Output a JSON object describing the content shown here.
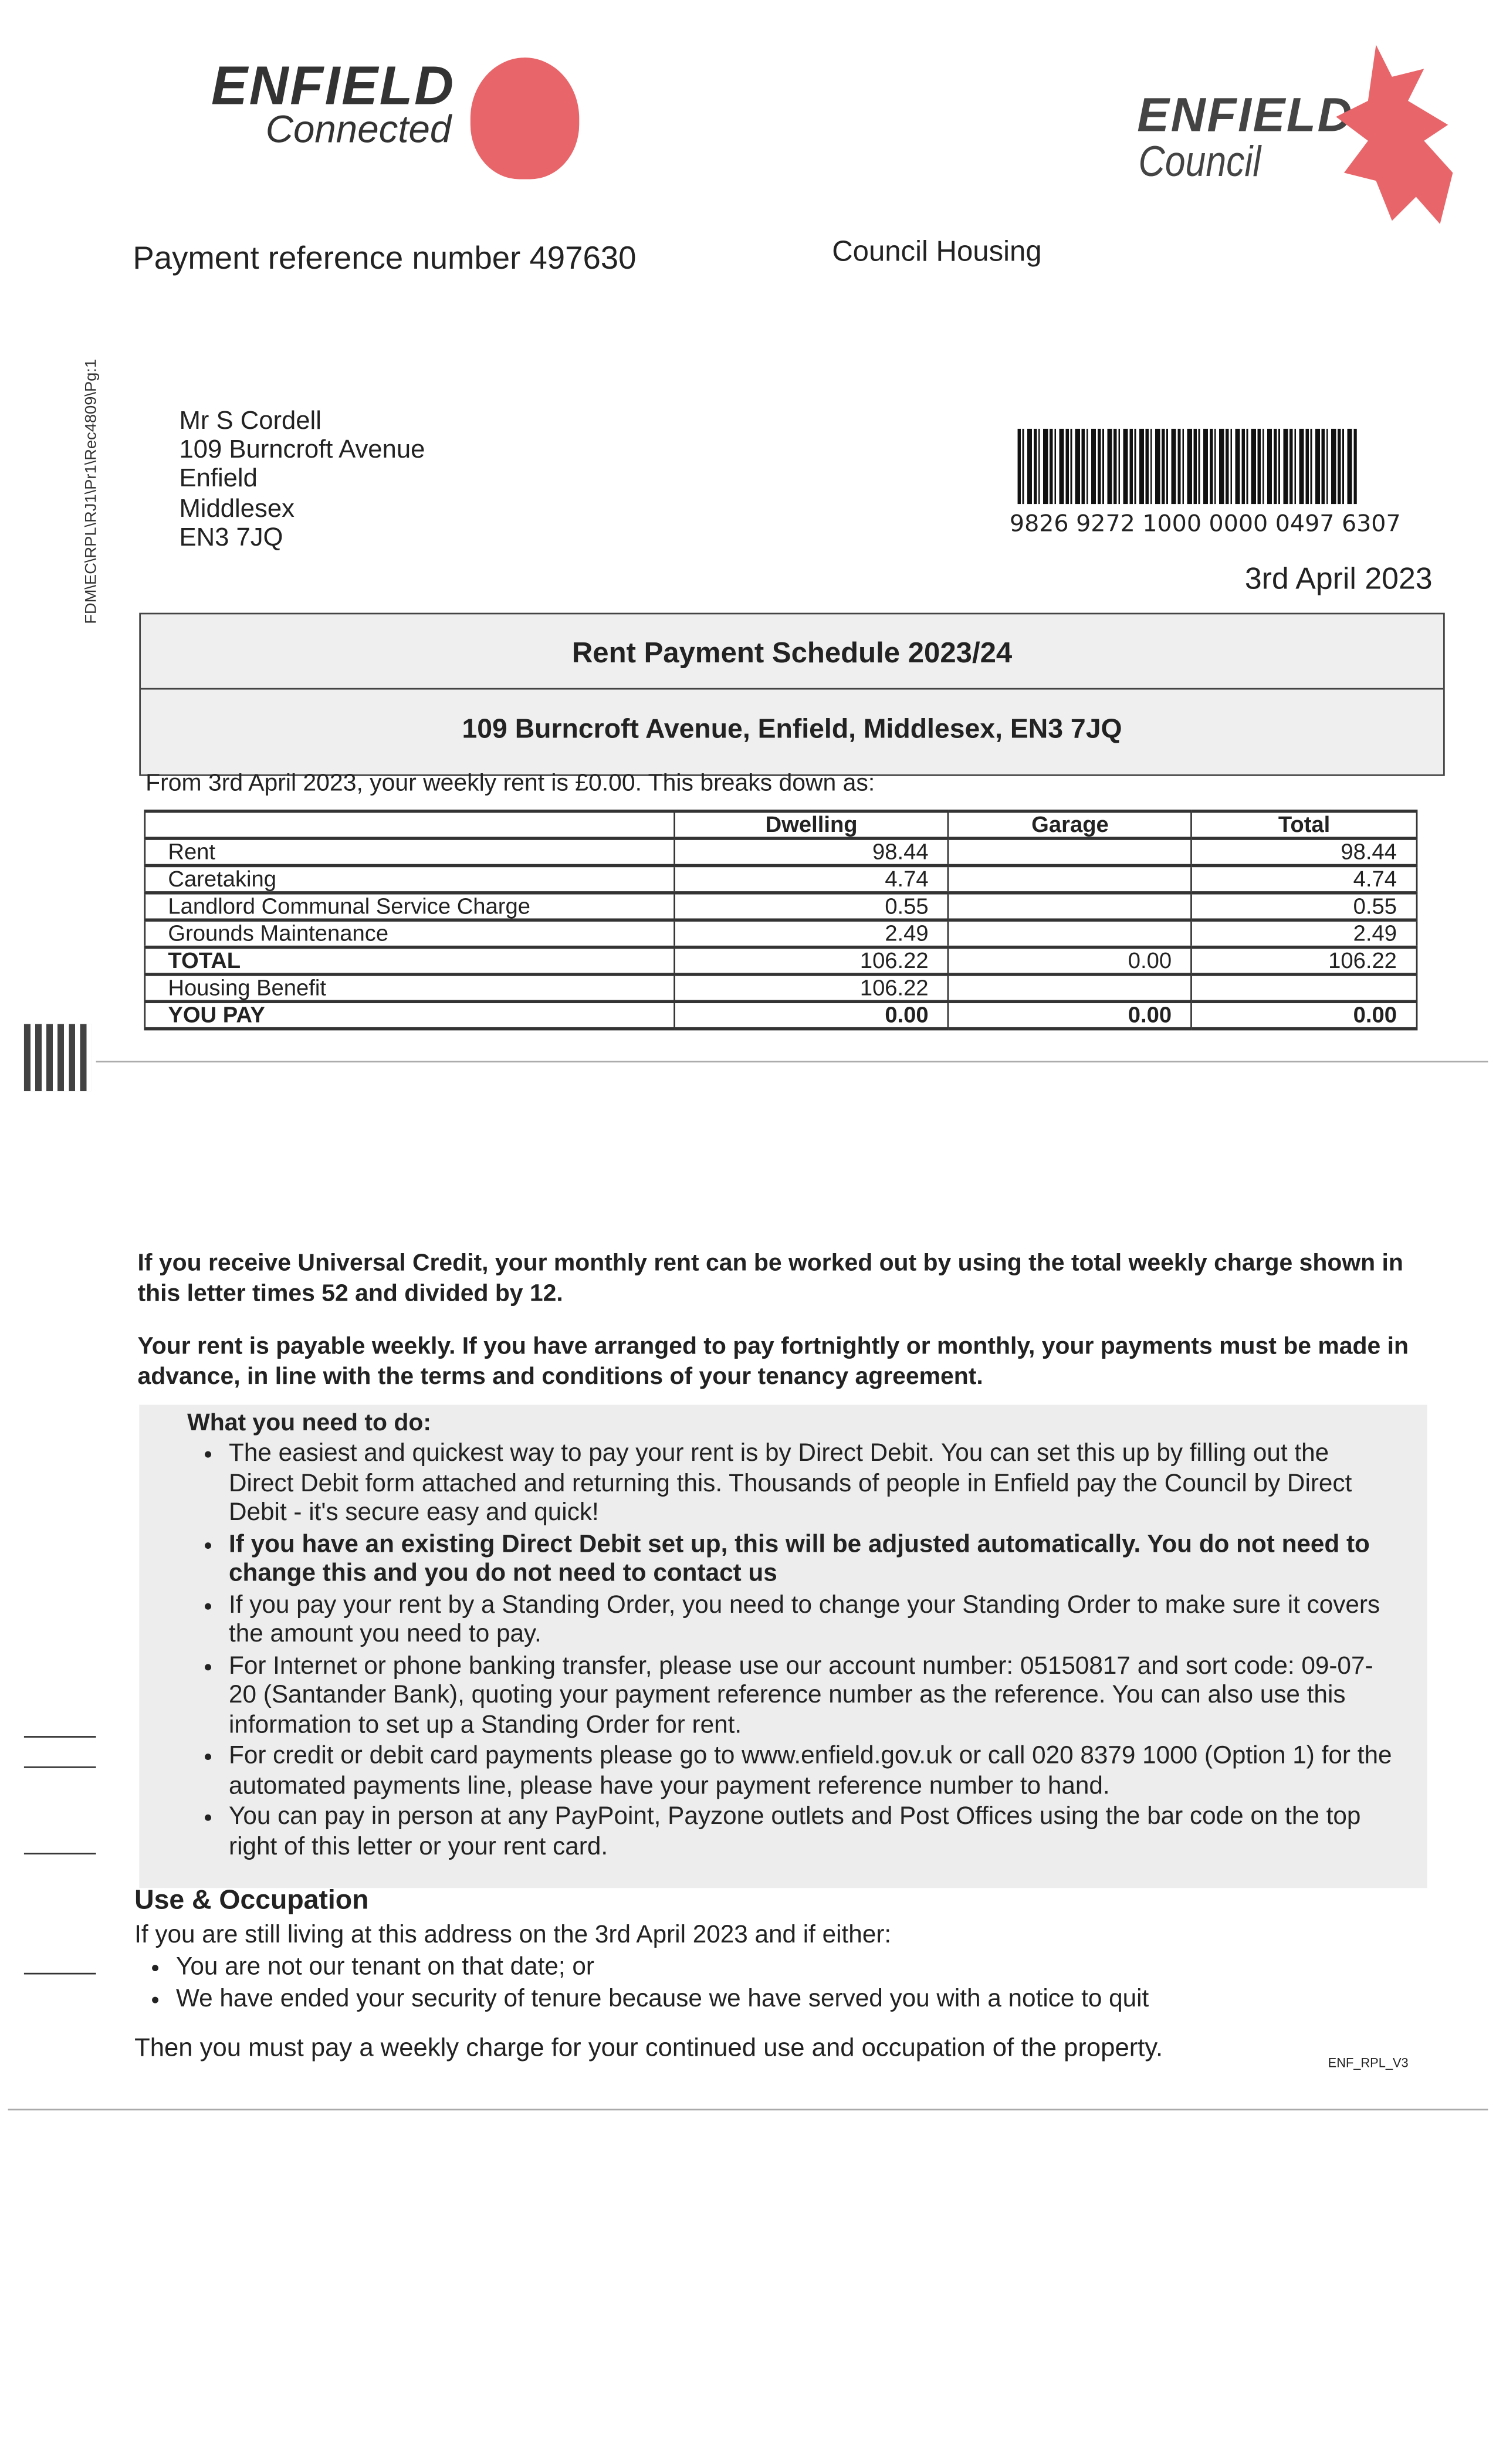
{
  "logos": {
    "connected_title": "ENFIELD",
    "connected_sub": "Connected",
    "council_title": "ENFIELD",
    "council_sub": "Council",
    "brand_color": "#e8666a"
  },
  "header": {
    "payment_reference": "Payment reference number 497630",
    "department": "Council Housing",
    "side_code": "FDM\\EC\\RPL\\RJ1\\Pr1\\Rec4809\\Pg:1"
  },
  "recipient": {
    "lines": [
      "Mr S Cordell",
      "109 Burncroft Avenue",
      "Enfield",
      "Middlesex",
      "EN3 7JQ"
    ]
  },
  "barcode_number": "9826 9272 1000 0000 0497 6307",
  "date": "3rd April 2023",
  "schedule": {
    "title": "Rent Payment Schedule 2023/24",
    "address": "109 Burncroft Avenue, Enfield, Middlesex, EN3 7JQ",
    "intro": "From 3rd April 2023, your weekly rent is £0.00. This breaks down as:"
  },
  "table": {
    "headers": [
      "",
      "Dwelling",
      "Garage",
      "Total"
    ],
    "rows": [
      [
        "Rent",
        "98.44",
        "",
        "98.44"
      ],
      [
        "Caretaking",
        "4.74",
        "",
        "4.74"
      ],
      [
        "Landlord Communal Service Charge",
        "0.55",
        "",
        "0.55"
      ],
      [
        "Grounds Maintenance",
        "2.49",
        "",
        "2.49"
      ],
      [
        "TOTAL",
        "106.22",
        "0.00",
        "106.22"
      ],
      [
        "Housing Benefit",
        "106.22",
        "",
        ""
      ],
      [
        "YOU PAY",
        "0.00",
        "0.00",
        "0.00"
      ]
    ]
  },
  "paragraphs": [
    "If you receive Universal Credit, your monthly rent can be worked out by using the total weekly charge shown in this letter times 52 and divided by 12.",
    "Your rent is payable weekly. If you have arranged to pay fortnightly or monthly, your payments must be made in advance, in line with the terms and conditions of your tenancy agreement."
  ],
  "todo": {
    "heading": "What you need to do:",
    "items": [
      "The easiest and quickest way to pay your rent is by Direct Debit. You can set this up by filling out the Direct Debit form attached and returning this. Thousands of people in Enfield pay the Council by Direct Debit - it's secure easy and quick!",
      "If you have an existing Direct Debit set up, this will be adjusted automatically. You do not need to change this and you do not need to contact us",
      "If you pay your rent by a Standing Order, you need to change your Standing Order to make sure it covers the amount you need to pay.",
      "For Internet or phone banking transfer, please use our account number: 05150817 and sort code: 09-07-20 (Santander Bank), quoting your payment reference number as the reference. You can also use this information to set up a Standing Order for rent."
    ],
    "card_pre": "For credit or debit card payments please go to ",
    "card_link": "www.enfield.gov.uk",
    "card_post": " or call 020 8379 1000 (Option 1) for the automated payments line, please have your payment reference number to hand.",
    "last": "You can pay in person at any PayPoint, Payzone outlets and Post Offices using the bar code on the top right of this letter or your rent card."
  },
  "use_occupation": {
    "heading": "Use & Occupation",
    "intro": "If you are still living at this address on the 3rd April 2023 and if either:",
    "items": [
      "You are not our tenant on that date; or",
      "We have ended your security of tenure because we have served you with a notice to quit"
    ],
    "closing": "Then you must pay a weekly charge for your continued use and occupation of the property."
  },
  "form_code": "ENF_RPL_V3"
}
